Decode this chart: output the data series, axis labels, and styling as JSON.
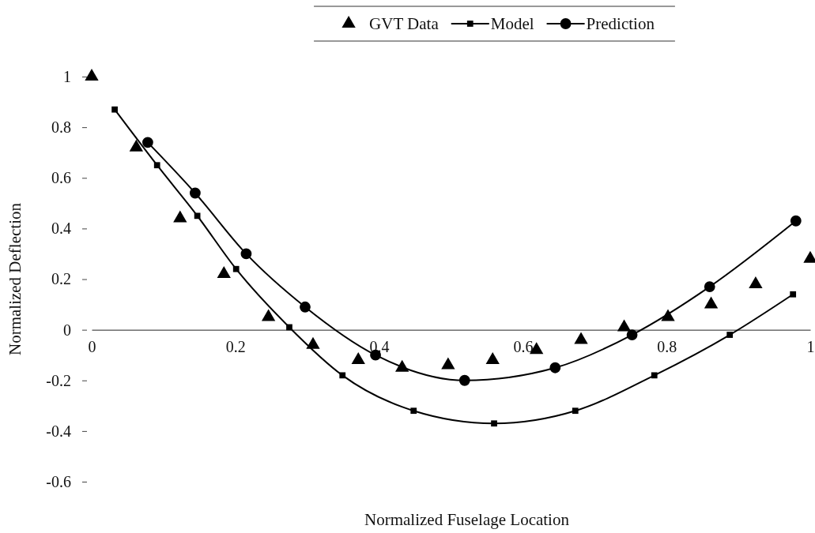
{
  "chart_data": {
    "type": "line",
    "xlabel": "Normalized Fuselage Location",
    "ylabel": "Normalized Deflection",
    "xlim": [
      0,
      1
    ],
    "ylim": [
      -0.6,
      1
    ],
    "xticks": [
      0,
      0.2,
      {
        "value": 0.4,
        "label": "0.4"
      },
      0.6,
      0.8,
      1
    ],
    "yticks": [
      -0.6,
      -0.4,
      -0.2,
      0,
      0.2,
      0.4,
      0.6,
      0.8,
      1
    ],
    "grid": false,
    "legend": "top",
    "line_style": "solid",
    "series": [
      {
        "name": "GVT Data",
        "type": "scatter",
        "marker": "triangle",
        "color": "#000000",
        "x": [
          0,
          0.062,
          0.123,
          0.184,
          0.246,
          0.308,
          0.371,
          0.432,
          0.496,
          0.558,
          0.619,
          0.681,
          0.741,
          0.802,
          0.862,
          0.924,
          1.0
        ],
        "values": [
          1.0,
          0.72,
          0.44,
          0.22,
          0.05,
          -0.06,
          -0.12,
          -0.15,
          -0.14,
          -0.12,
          -0.08,
          -0.04,
          0.01,
          0.05,
          0.1,
          0.18,
          0.28
        ]
      },
      {
        "name": "Model",
        "marker": "square",
        "color": "#000000",
        "x": [
          0.032,
          0.091,
          0.147,
          0.201,
          0.275,
          0.349,
          0.448,
          0.56,
          0.673,
          0.783,
          0.888,
          0.976
        ],
        "values": [
          0.87,
          0.65,
          0.45,
          0.24,
          0.01,
          -0.18,
          -0.32,
          -0.37,
          -0.32,
          -0.18,
          -0.02,
          0.14
        ]
      },
      {
        "name": "Prediction",
        "marker": "circle",
        "color": "#000000",
        "x": [
          0.078,
          0.144,
          0.215,
          0.297,
          0.395,
          0.519,
          0.645,
          0.752,
          0.86,
          0.98
        ],
        "values": [
          0.74,
          0.54,
          0.3,
          0.09,
          -0.1,
          -0.2,
          -0.15,
          -0.02,
          0.17,
          0.43
        ]
      }
    ]
  }
}
